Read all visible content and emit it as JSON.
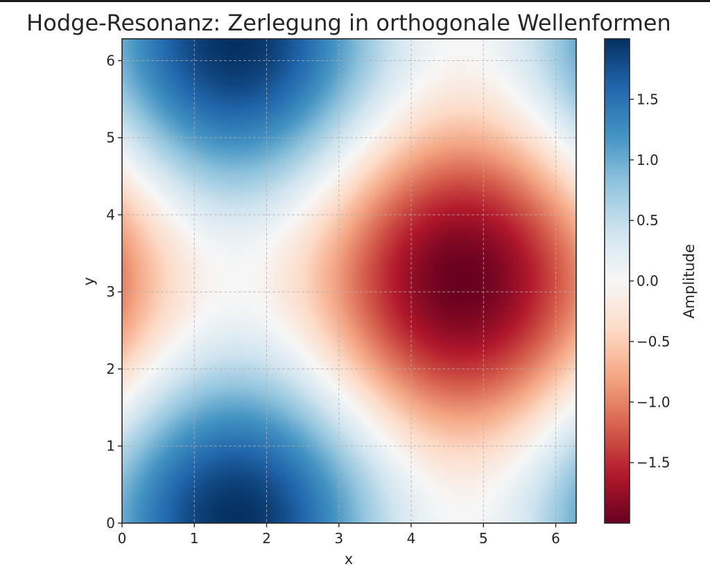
{
  "chart_data": {
    "type": "heatmap",
    "title": "Hodge-Resonanz: Zerlegung in orthogonale Wellenformen",
    "xlabel": "x",
    "ylabel": "y",
    "colorbar_label": "Amplitude",
    "xlim": [
      0,
      6.283
    ],
    "ylim": [
      0,
      6.283
    ],
    "xticks": [
      0,
      1,
      2,
      3,
      4,
      5,
      6
    ],
    "yticks": [
      0,
      1,
      2,
      3,
      4,
      5,
      6
    ],
    "colorbar_ticks": [
      1.5,
      1.0,
      0.5,
      0.0,
      -0.5,
      -1.0,
      -1.5
    ],
    "colorbar_tick_labels": [
      "1.5",
      "1.0",
      "0.5",
      "0.0",
      "−0.5",
      "−1.0",
      "−1.5"
    ],
    "value_range": [
      -2.0,
      2.0
    ],
    "colormap": "RdBu",
    "field": "sin(x)*cos(y) + cos(2*y)*...",
    "grid": true,
    "colors": {
      "high": "#053061",
      "mid": "#f7f7f7",
      "low": "#67001f"
    },
    "features": [
      {
        "x": 1.57,
        "y": 0.0,
        "value": 2.0
      },
      {
        "x": 1.57,
        "y": 6.28,
        "value": 2.0
      },
      {
        "x": 4.71,
        "y": 3.14,
        "value": -2.0
      },
      {
        "x": 0.0,
        "y": 3.14,
        "value": -0.6
      },
      {
        "x": 6.28,
        "y": 0.0,
        "value": 0.6
      },
      {
        "x": 6.28,
        "y": 6.28,
        "value": 0.6
      }
    ]
  }
}
